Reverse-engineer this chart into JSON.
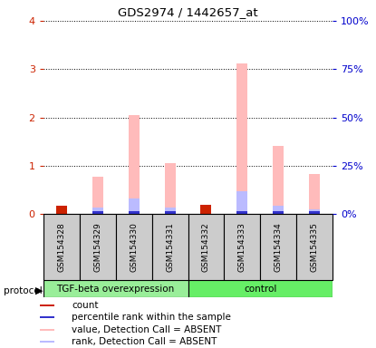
{
  "title": "GDS2974 / 1442657_at",
  "samples": [
    "GSM154328",
    "GSM154329",
    "GSM154330",
    "GSM154331",
    "GSM154332",
    "GSM154333",
    "GSM154334",
    "GSM154335"
  ],
  "group1_label": "TGF-beta overexpression",
  "group2_label": "control",
  "pink_bars": [
    0.18,
    0.78,
    2.05,
    1.05,
    0.2,
    3.12,
    1.42,
    0.82
  ],
  "blue_bars": [
    0.0,
    0.13,
    0.33,
    0.14,
    0.0,
    0.48,
    0.18,
    0.1
  ],
  "red_bars": [
    0.18,
    0.05,
    0.05,
    0.05,
    0.2,
    0.05,
    0.05,
    0.05
  ],
  "darkblue_bars": [
    0.0,
    0.05,
    0.05,
    0.05,
    0.0,
    0.05,
    0.05,
    0.05
  ],
  "ylim": [
    0,
    4
  ],
  "left_color": "#cc2200",
  "right_color": "#0000cc",
  "pink_color": "#ffbbbb",
  "blue_color": "#bbbbff",
  "red_color": "#cc2200",
  "dblue_color": "#3333cc",
  "bar_width": 0.3,
  "sample_bg": "#cccccc",
  "group1_color": "#99ee99",
  "group2_color": "#66ee66",
  "legend_items": [
    {
      "label": "count",
      "color": "#cc2200"
    },
    {
      "label": "percentile rank within the sample",
      "color": "#3333cc"
    },
    {
      "label": "value, Detection Call = ABSENT",
      "color": "#ffbbbb"
    },
    {
      "label": "rank, Detection Call = ABSENT",
      "color": "#bbbbff"
    }
  ]
}
